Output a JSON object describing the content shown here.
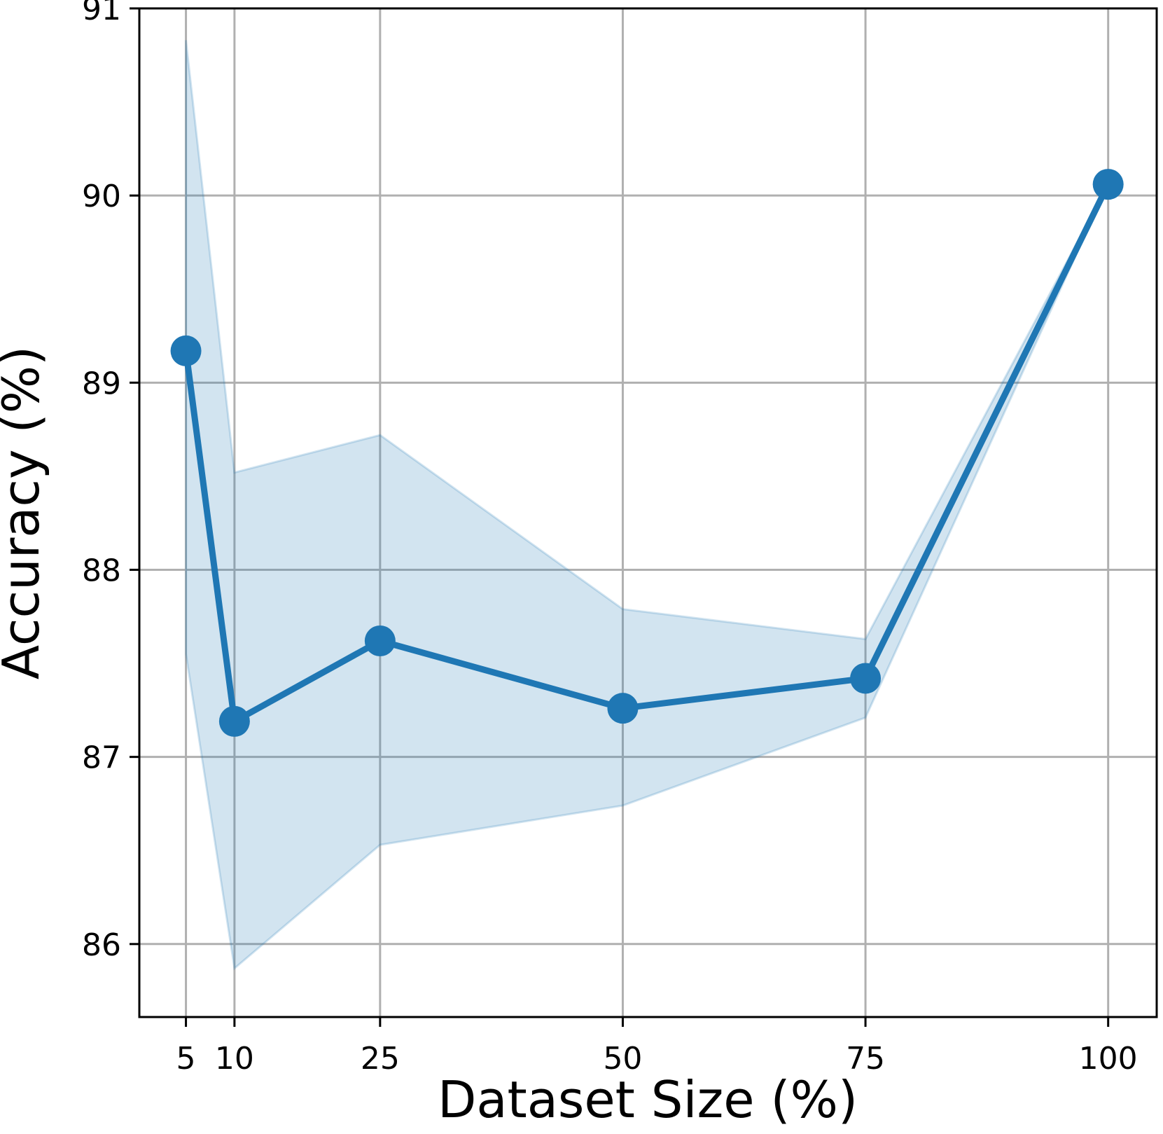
{
  "chart_data": {
    "type": "line",
    "title": "",
    "xlabel": "Dataset Size (%)",
    "ylabel": "Accuracy (%)",
    "x": [
      5,
      10,
      25,
      50,
      75,
      100
    ],
    "xticks": [
      "5",
      "10",
      "25",
      "50",
      "75",
      "100"
    ],
    "yticks": [
      "86",
      "87",
      "88",
      "89",
      "90",
      "91"
    ],
    "xlim": [
      0.2,
      105
    ],
    "ylim": [
      85.61,
      91.0
    ],
    "grid": true,
    "series": [
      {
        "values": [
          89.17,
          87.19,
          87.62,
          87.26,
          87.42,
          90.06
        ],
        "band_upper": [
          90.83,
          88.52,
          88.72,
          87.79,
          87.63,
          90.06
        ],
        "band_lower": [
          87.55,
          85.87,
          86.53,
          86.74,
          87.21,
          90.06
        ],
        "color": "#1f77b4",
        "band_color": "#1f77b4"
      }
    ]
  }
}
